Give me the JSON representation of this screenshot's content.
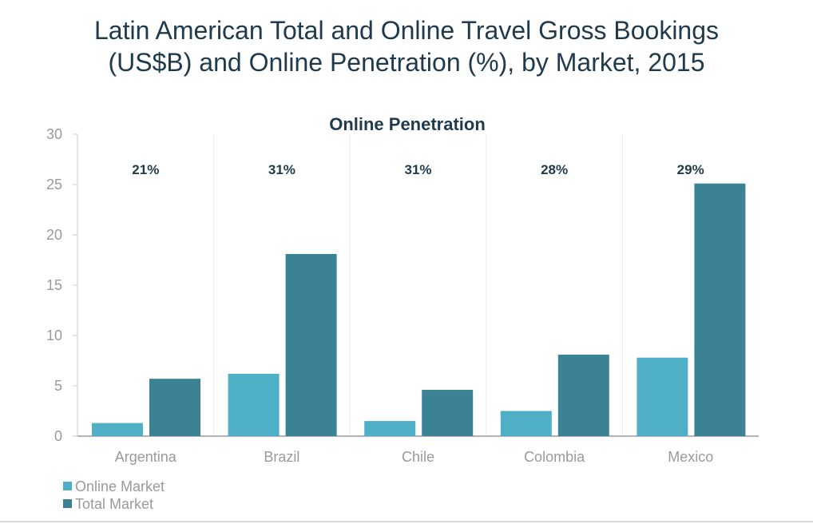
{
  "chart_data": {
    "type": "bar",
    "title_lines": [
      "Latin American Total and Online Travel Gross Bookings",
      "(US$B) and Online Penetration (%), by Market, 2015"
    ],
    "subtitle": "Online Penetration",
    "categories": [
      "Argentina",
      "Brazil",
      "Chile",
      "Colombia",
      "Mexico"
    ],
    "series": [
      {
        "name": "Online Market",
        "values": [
          1.3,
          6.2,
          1.5,
          2.5,
          7.8
        ],
        "color": "#4fafc7"
      },
      {
        "name": "Total Market",
        "values": [
          5.7,
          18.1,
          4.6,
          8.1,
          25.1
        ],
        "color": "#3b8294"
      }
    ],
    "penetration_labels": [
      "21%",
      "31%",
      "31%",
      "28%",
      "29%"
    ],
    "ylim": [
      0,
      30
    ],
    "yticks": [
      0,
      5,
      10,
      15,
      20,
      25,
      30
    ],
    "grid": "vertical separators between categories",
    "legend_position": "bottom-left"
  }
}
